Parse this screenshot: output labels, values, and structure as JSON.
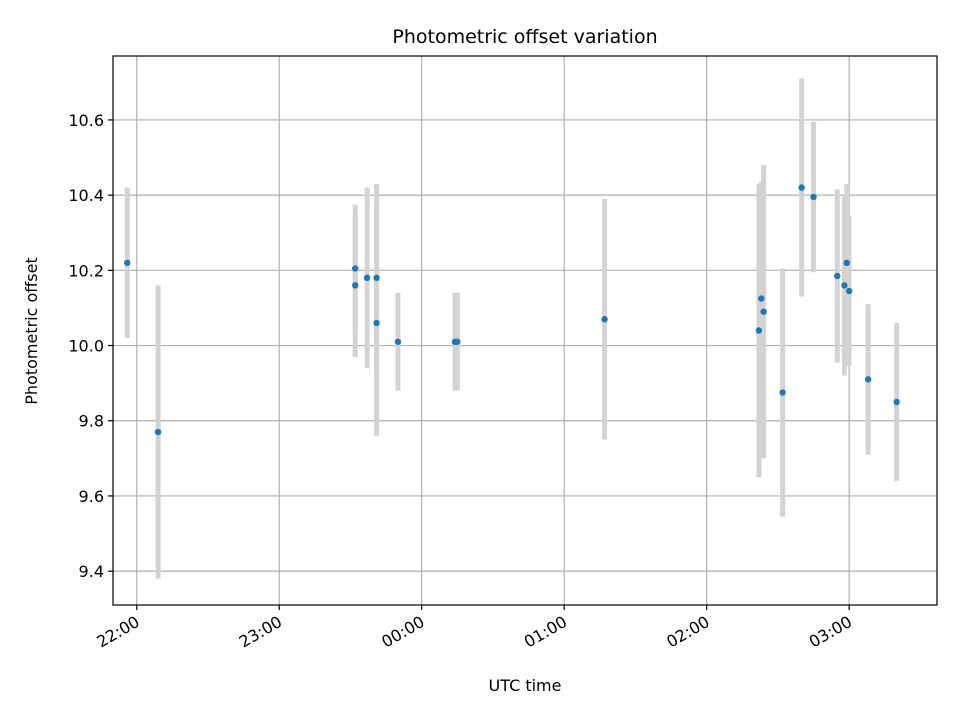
{
  "chart_data": {
    "type": "scatter",
    "title": "Photometric offset variation",
    "xlabel": "UTC time",
    "ylabel": "Photometric offset",
    "grid": true,
    "x_ticks": [
      "22:00",
      "23:00",
      "00:00",
      "01:00",
      "02:00",
      "03:00"
    ],
    "y_ticks": [
      "9.4",
      "9.6",
      "9.8",
      "10.0",
      "10.2",
      "10.4",
      "10.6"
    ],
    "xlim": [
      "21:50",
      "03:37"
    ],
    "ylim": [
      9.31,
      10.77
    ],
    "colors": {
      "point": "#1f77b4",
      "errorbar": "#d3d3d3",
      "grid": "#b0b0b0"
    },
    "series": [
      {
        "points": [
          {
            "x": "21:56",
            "y": 10.22,
            "err": 0.2
          },
          {
            "x": "22:09",
            "y": 9.77,
            "err": 0.39
          },
          {
            "x": "23:32",
            "y": 10.205,
            "err": 0.17
          },
          {
            "x": "23:32",
            "y": 10.16,
            "err": 0.19
          },
          {
            "x": "23:37",
            "y": 10.18,
            "err": 0.24
          },
          {
            "x": "23:41",
            "y": 10.06,
            "err": 0.3
          },
          {
            "x": "23:41",
            "y": 10.18,
            "err": 0.25
          },
          {
            "x": "23:50",
            "y": 10.01,
            "err": 0.13
          },
          {
            "x": "00:14",
            "y": 10.01,
            "err": 0.13
          },
          {
            "x": "00:15",
            "y": 10.01,
            "err": 0.13
          },
          {
            "x": "01:17",
            "y": 10.07,
            "err": 0.32
          },
          {
            "x": "02:22",
            "y": 10.04,
            "err": 0.39
          },
          {
            "x": "02:23",
            "y": 10.125,
            "err": 0.31
          },
          {
            "x": "02:24",
            "y": 10.09,
            "err": 0.39
          },
          {
            "x": "02:32",
            "y": 9.875,
            "err": 0.33
          },
          {
            "x": "02:40",
            "y": 10.42,
            "err": 0.29
          },
          {
            "x": "02:45",
            "y": 10.395,
            "err": 0.2
          },
          {
            "x": "02:55",
            "y": 10.185,
            "err": 0.23
          },
          {
            "x": "02:58",
            "y": 10.16,
            "err": 0.24
          },
          {
            "x": "02:59",
            "y": 10.22,
            "err": 0.21
          },
          {
            "x": "03:00",
            "y": 10.145,
            "err": 0.2
          },
          {
            "x": "03:08",
            "y": 9.91,
            "err": 0.2
          },
          {
            "x": "03:20",
            "y": 9.85,
            "err": 0.21
          }
        ]
      }
    ]
  }
}
